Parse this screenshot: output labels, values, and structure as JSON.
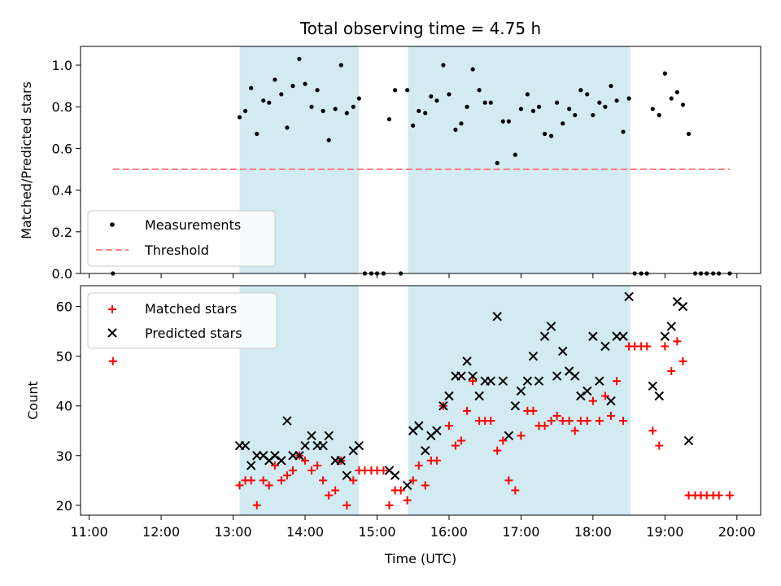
{
  "colors": {
    "band": "#add8e6",
    "measurement": "#000000",
    "threshold": "#ff8080",
    "matched": "#ff0000",
    "predicted": "#000000"
  },
  "chart_data": {
    "title": "Total observing time = 4.75 h",
    "xlabel": "Time (UTC)",
    "x_unit": "hours UTC",
    "xlim": [
      10.88,
      20.33
    ],
    "x_ticks": [
      {
        "value": 11,
        "label": "11:00"
      },
      {
        "value": 12,
        "label": "12:00"
      },
      {
        "value": 13,
        "label": "13:00"
      },
      {
        "value": 14,
        "label": "14:00"
      },
      {
        "value": 15,
        "label": "15:00"
      },
      {
        "value": 16,
        "label": "16:00"
      },
      {
        "value": 17,
        "label": "17:00"
      },
      {
        "value": 18,
        "label": "18:00"
      },
      {
        "value": 19,
        "label": "19:00"
      },
      {
        "value": 20,
        "label": "20:00"
      }
    ],
    "bands": [
      [
        13.09,
        14.75
      ],
      [
        15.43,
        18.52
      ]
    ],
    "top": {
      "type": "scatter",
      "ylabel": "Matched/Predicted stars",
      "ylim": [
        0,
        1.09
      ],
      "y_ticks": [
        {
          "value": 0.0,
          "label": "0.0"
        },
        {
          "value": 0.2,
          "label": "0.2"
        },
        {
          "value": 0.4,
          "label": "0.4"
        },
        {
          "value": 0.6,
          "label": "0.6"
        },
        {
          "value": 0.8,
          "label": "0.8"
        },
        {
          "value": 1.0,
          "label": "1.0"
        }
      ],
      "legend": {
        "placement": "lower-left",
        "measurements_label": "Measurements",
        "threshold_label": "Threshold"
      },
      "threshold": {
        "value": 0.5,
        "x_range": [
          11.33,
          19.9
        ]
      },
      "measurements": [
        [
          11.33,
          0.0
        ],
        [
          13.09,
          0.75
        ],
        [
          13.17,
          0.78
        ],
        [
          13.25,
          0.89
        ],
        [
          13.33,
          0.67
        ],
        [
          13.42,
          0.83
        ],
        [
          13.5,
          0.82
        ],
        [
          13.58,
          0.93
        ],
        [
          13.67,
          0.86
        ],
        [
          13.75,
          0.7
        ],
        [
          13.83,
          0.9
        ],
        [
          13.92,
          1.03
        ],
        [
          14.0,
          0.91
        ],
        [
          14.09,
          0.8
        ],
        [
          14.17,
          0.88
        ],
        [
          14.25,
          0.78
        ],
        [
          14.33,
          0.64
        ],
        [
          14.42,
          0.79
        ],
        [
          14.5,
          1.0
        ],
        [
          14.58,
          0.77
        ],
        [
          14.67,
          0.8
        ],
        [
          14.75,
          0.84
        ],
        [
          14.83,
          0.0
        ],
        [
          14.92,
          0.0
        ],
        [
          15.0,
          0.0
        ],
        [
          15.09,
          0.0
        ],
        [
          15.17,
          0.74
        ],
        [
          15.25,
          0.88
        ],
        [
          15.33,
          0.0
        ],
        [
          15.42,
          0.88
        ],
        [
          15.5,
          0.71
        ],
        [
          15.58,
          0.78
        ],
        [
          15.67,
          0.77
        ],
        [
          15.75,
          0.85
        ],
        [
          15.83,
          0.83
        ],
        [
          15.92,
          1.0
        ],
        [
          16.0,
          0.86
        ],
        [
          16.09,
          0.69
        ],
        [
          16.17,
          0.72
        ],
        [
          16.25,
          0.8
        ],
        [
          16.33,
          0.98
        ],
        [
          16.42,
          0.88
        ],
        [
          16.5,
          0.82
        ],
        [
          16.58,
          0.82
        ],
        [
          16.67,
          0.53
        ],
        [
          16.75,
          0.73
        ],
        [
          16.83,
          0.73
        ],
        [
          16.92,
          0.57
        ],
        [
          17.0,
          0.79
        ],
        [
          17.09,
          0.86
        ],
        [
          17.17,
          0.78
        ],
        [
          17.25,
          0.8
        ],
        [
          17.33,
          0.67
        ],
        [
          17.42,
          0.66
        ],
        [
          17.5,
          0.82
        ],
        [
          17.58,
          0.72
        ],
        [
          17.67,
          0.79
        ],
        [
          17.75,
          0.76
        ],
        [
          17.83,
          0.88
        ],
        [
          17.92,
          0.86
        ],
        [
          18.0,
          0.76
        ],
        [
          18.09,
          0.82
        ],
        [
          18.17,
          0.8
        ],
        [
          18.25,
          0.9
        ],
        [
          18.33,
          0.83
        ],
        [
          18.42,
          0.68
        ],
        [
          18.5,
          0.84
        ],
        [
          18.58,
          0.0
        ],
        [
          18.67,
          0.0
        ],
        [
          18.75,
          0.0
        ],
        [
          18.83,
          0.79
        ],
        [
          18.92,
          0.76
        ],
        [
          19.0,
          0.96
        ],
        [
          19.09,
          0.84
        ],
        [
          19.17,
          0.87
        ],
        [
          19.25,
          0.81
        ],
        [
          19.33,
          0.67
        ],
        [
          19.42,
          0.0
        ],
        [
          19.5,
          0.0
        ],
        [
          19.58,
          0.0
        ],
        [
          19.67,
          0.0
        ],
        [
          19.75,
          0.0
        ],
        [
          19.9,
          0.0
        ]
      ]
    },
    "bottom": {
      "type": "scatter",
      "ylabel": "Count",
      "ylim": [
        18,
        64.2
      ],
      "y_ticks": [
        {
          "value": 20,
          "label": "20"
        },
        {
          "value": 30,
          "label": "30"
        },
        {
          "value": 40,
          "label": "40"
        },
        {
          "value": 50,
          "label": "50"
        },
        {
          "value": 60,
          "label": "60"
        }
      ],
      "legend": {
        "placement": "upper-left",
        "matched_label": "Matched stars",
        "predicted_label": "Predicted stars"
      },
      "matched": [
        [
          11.33,
          49
        ],
        [
          13.09,
          24
        ],
        [
          13.17,
          25
        ],
        [
          13.25,
          25
        ],
        [
          13.33,
          20
        ],
        [
          13.42,
          25
        ],
        [
          13.5,
          24
        ],
        [
          13.58,
          28
        ],
        [
          13.67,
          25
        ],
        [
          13.75,
          26
        ],
        [
          13.83,
          27
        ],
        [
          13.92,
          30
        ],
        [
          14.0,
          29
        ],
        [
          14.09,
          27
        ],
        [
          14.17,
          28
        ],
        [
          14.25,
          25
        ],
        [
          14.33,
          22
        ],
        [
          14.42,
          23
        ],
        [
          14.5,
          29
        ],
        [
          14.58,
          20
        ],
        [
          14.67,
          25
        ],
        [
          14.75,
          27
        ],
        [
          14.83,
          27
        ],
        [
          14.92,
          27
        ],
        [
          15.0,
          27
        ],
        [
          15.09,
          27
        ],
        [
          15.17,
          20
        ],
        [
          15.25,
          23
        ],
        [
          15.33,
          23
        ],
        [
          15.42,
          21
        ],
        [
          15.5,
          25
        ],
        [
          15.58,
          28
        ],
        [
          15.67,
          24
        ],
        [
          15.75,
          29
        ],
        [
          15.83,
          29
        ],
        [
          15.92,
          40
        ],
        [
          16.0,
          36
        ],
        [
          16.09,
          32
        ],
        [
          16.17,
          33
        ],
        [
          16.25,
          39
        ],
        [
          16.33,
          45
        ],
        [
          16.42,
          37
        ],
        [
          16.5,
          37
        ],
        [
          16.58,
          37
        ],
        [
          16.67,
          31
        ],
        [
          16.75,
          33
        ],
        [
          16.83,
          25
        ],
        [
          16.92,
          23
        ],
        [
          17.0,
          34
        ],
        [
          17.09,
          39
        ],
        [
          17.17,
          39
        ],
        [
          17.25,
          36
        ],
        [
          17.33,
          36
        ],
        [
          17.42,
          37
        ],
        [
          17.5,
          38
        ],
        [
          17.58,
          37
        ],
        [
          17.67,
          37
        ],
        [
          17.75,
          35
        ],
        [
          17.83,
          37
        ],
        [
          17.92,
          37
        ],
        [
          18.0,
          41
        ],
        [
          18.09,
          37
        ],
        [
          18.17,
          42
        ],
        [
          18.25,
          38
        ],
        [
          18.33,
          45
        ],
        [
          18.42,
          37
        ],
        [
          18.5,
          52
        ],
        [
          18.58,
          52
        ],
        [
          18.67,
          52
        ],
        [
          18.75,
          52
        ],
        [
          18.83,
          35
        ],
        [
          18.92,
          32
        ],
        [
          19.0,
          52
        ],
        [
          19.09,
          47
        ],
        [
          19.17,
          53
        ],
        [
          19.25,
          49
        ],
        [
          19.33,
          22
        ],
        [
          19.42,
          22
        ],
        [
          19.5,
          22
        ],
        [
          19.58,
          22
        ],
        [
          19.67,
          22
        ],
        [
          19.75,
          22
        ],
        [
          19.9,
          22
        ]
      ],
      "predicted": [
        [
          13.09,
          32
        ],
        [
          13.17,
          32
        ],
        [
          13.25,
          28
        ],
        [
          13.33,
          30
        ],
        [
          13.42,
          30
        ],
        [
          13.5,
          29
        ],
        [
          13.58,
          30
        ],
        [
          13.67,
          29
        ],
        [
          13.75,
          37
        ],
        [
          13.83,
          30
        ],
        [
          13.92,
          30
        ],
        [
          14.0,
          32
        ],
        [
          14.09,
          34
        ],
        [
          14.17,
          32
        ],
        [
          14.25,
          32
        ],
        [
          14.33,
          34
        ],
        [
          14.42,
          29
        ],
        [
          14.5,
          29
        ],
        [
          14.58,
          26
        ],
        [
          14.67,
          31
        ],
        [
          14.75,
          32
        ],
        [
          15.17,
          27
        ],
        [
          15.25,
          26
        ],
        [
          15.42,
          24
        ],
        [
          15.5,
          35
        ],
        [
          15.58,
          36
        ],
        [
          15.67,
          31
        ],
        [
          15.75,
          34
        ],
        [
          15.83,
          35
        ],
        [
          15.92,
          40
        ],
        [
          16.0,
          42
        ],
        [
          16.09,
          46
        ],
        [
          16.17,
          46
        ],
        [
          16.25,
          49
        ],
        [
          16.33,
          46
        ],
        [
          16.42,
          42
        ],
        [
          16.5,
          45
        ],
        [
          16.58,
          45
        ],
        [
          16.67,
          58
        ],
        [
          16.75,
          45
        ],
        [
          16.83,
          34
        ],
        [
          16.92,
          40
        ],
        [
          17.0,
          43
        ],
        [
          17.09,
          45
        ],
        [
          17.17,
          50
        ],
        [
          17.25,
          45
        ],
        [
          17.33,
          54
        ],
        [
          17.42,
          56
        ],
        [
          17.5,
          46
        ],
        [
          17.58,
          51
        ],
        [
          17.67,
          47
        ],
        [
          17.75,
          46
        ],
        [
          17.83,
          42
        ],
        [
          17.92,
          43
        ],
        [
          18.0,
          54
        ],
        [
          18.09,
          45
        ],
        [
          18.17,
          52
        ],
        [
          18.25,
          41
        ],
        [
          18.33,
          54
        ],
        [
          18.42,
          54
        ],
        [
          18.5,
          62
        ],
        [
          18.83,
          44
        ],
        [
          18.92,
          42
        ],
        [
          19.0,
          54
        ],
        [
          19.09,
          56
        ],
        [
          19.17,
          61
        ],
        [
          19.25,
          60
        ],
        [
          19.33,
          33
        ]
      ]
    }
  }
}
